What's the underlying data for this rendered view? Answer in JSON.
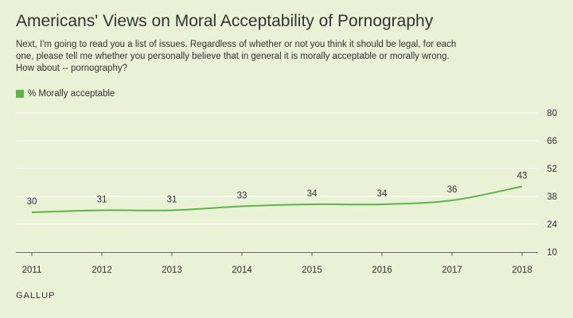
{
  "title": "Americans' Views on Moral Acceptability of Pornography",
  "subtitle": "Next, I'm going to read you a list of issues. Regardless of whether or not you think it should be legal, for each one, please tell me whether you personally believe that in general it is morally acceptable or morally wrong. How about -- pornography?",
  "source": "GALLUP",
  "colors": {
    "background": "#e9f1d7",
    "series": "#5db544",
    "gridline": "#ffffff",
    "text": "#333333"
  },
  "chart_data": {
    "type": "line",
    "x": [
      "2011",
      "2012",
      "2013",
      "2014",
      "2015",
      "2016",
      "2017",
      "2018"
    ],
    "series": [
      {
        "name": "% Morally acceptable",
        "values": [
          30,
          31,
          31,
          33,
          34,
          34,
          36,
          43
        ]
      }
    ],
    "ylim": [
      10,
      80
    ],
    "yticks": [
      80,
      66,
      52,
      38,
      24,
      10
    ],
    "grid": true,
    "legend_position": "top-left",
    "data_labels": true
  }
}
